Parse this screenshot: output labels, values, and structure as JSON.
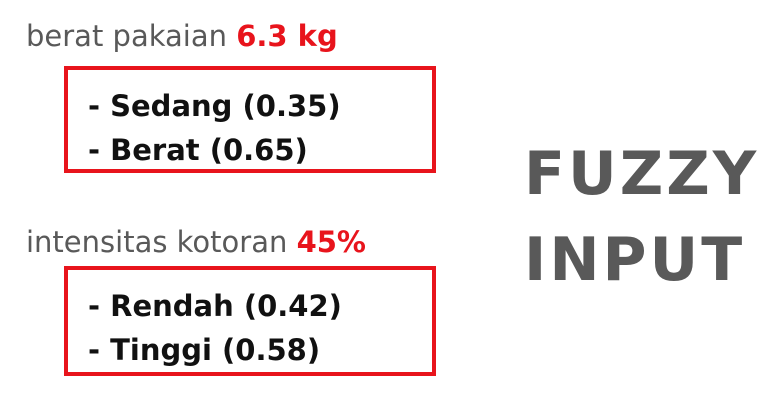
{
  "weight": {
    "label": "berat pakaian",
    "value": "6.3 kg",
    "memberships": [
      "- Sedang (0.35)",
      "- Berat (0.65)"
    ]
  },
  "dirt": {
    "label": "intensitas kotoran",
    "value": "45%",
    "memberships": [
      "- Rendah (0.42)",
      "- Tinggi (0.58)"
    ]
  },
  "title": {
    "line1": "FUZZY",
    "line2": "INPUT"
  },
  "colors": {
    "accent": "#e8141c",
    "label_gray": "#595959",
    "text_dark": "#111111"
  }
}
